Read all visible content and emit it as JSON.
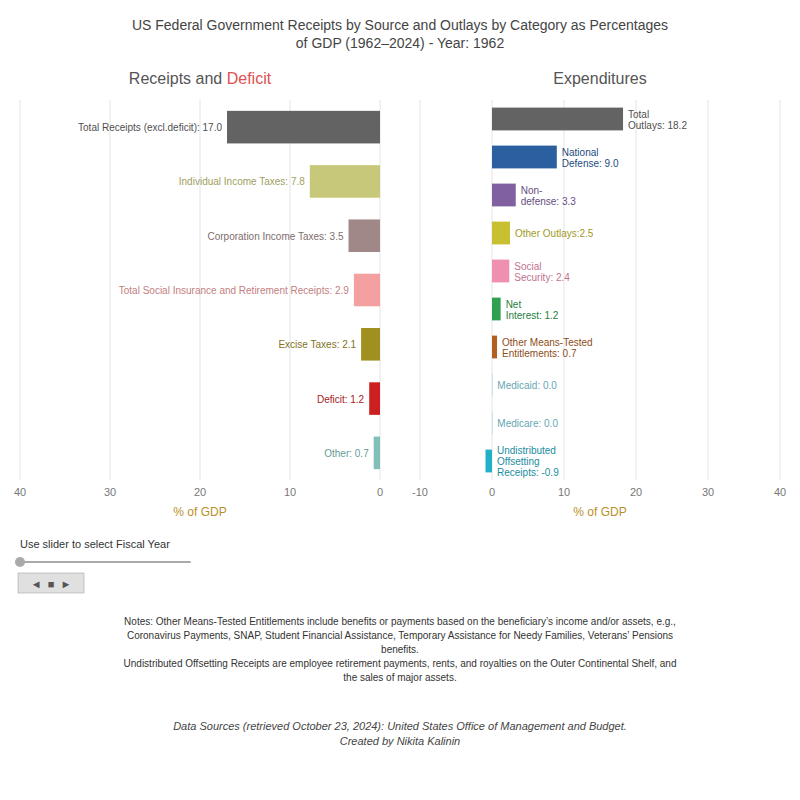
{
  "chart_data": [
    {
      "type": "bar",
      "orientation": "horizontal",
      "title": "US Federal Government Receipts by Source and Outlays by Category as Percentages\nof GDP (1962–2024) - Year: 1962",
      "subtitle": [
        {
          "text": "Receipts and ",
          "color": "#555555"
        },
        {
          "text": "Deficit",
          "color": "#e05050"
        }
      ],
      "categories": [
        "Total Receipts (excl.deficit): 17.0",
        "Individual Income Taxes: 7.8",
        "Corporation Income Taxes: 3.5",
        "Total Social Insurance and Retirement Receipts: 2.9",
        "Excise Taxes: 2.1",
        "Deficit: 1.2",
        "Other: 0.7"
      ],
      "values": [
        17.0,
        7.8,
        3.5,
        2.9,
        2.1,
        1.2,
        0.7
      ],
      "colors": [
        "#636363",
        "#c8c87a",
        "#a08888",
        "#f4a0a0",
        "#a09020",
        "#cc2020",
        "#80c0b8"
      ],
      "xlabel": "% of GDP",
      "xlim": [
        40,
        0
      ],
      "xticks": [
        40,
        30,
        20,
        10,
        0
      ],
      "grid": true,
      "annotations": [
        "Use slider to select Fiscal Year",
        "◄  ■  ►",
        "Notes: Other Means-Tested Entitlements include benefits or payments based on the beneficiary’s income and/or assets, e.g.,\nCoronavirus Payments, SNAP, Student Financial Assistance, Temporary Assistance for Needy Families, Veterans’ Pensions\nbenefits.\nUndistributed Offsetting Receipts are employee retirement payments, rents, and royalties on the Outer Continental Shelf, and\nthe sales of major assets.",
        "Data Sources (retrieved October 23, 2024): United States Office of Management and Budget.\nCreated by Nikita Kalinin"
      ]
    },
    {
      "type": "bar",
      "orientation": "horizontal",
      "subtitle": "Expenditures",
      "categories": [
        "Total\nOutlays: 18.2",
        "National\nDefense: 9.0",
        "Non-\ndefense: 3.3",
        "Other Outlays:2.5",
        "Social\nSecurity: 2.4",
        "Net\nInterest: 1.2",
        "Other Means-Tested\nEntitlements: 0.7",
        "Medicaid: 0.0",
        "Medicare: 0.0",
        "Undistributed\nOffsetting\nReceipts: -0.9"
      ],
      "values": [
        18.2,
        9.0,
        3.3,
        2.5,
        2.4,
        1.2,
        0.7,
        0.05,
        0.05,
        -0.9
      ],
      "colors": [
        "#636363",
        "#2a5fa0",
        "#8060a0",
        "#c8c030",
        "#f090b0",
        "#30a050",
        "#b06020",
        "#80d0e0",
        "#80d0e0",
        "#20b0c8"
      ],
      "xlabel": "% of GDP",
      "xlim": [
        -10,
        40
      ],
      "xticks": [
        -10,
        0,
        10,
        20,
        30,
        40
      ],
      "grid": true
    }
  ]
}
